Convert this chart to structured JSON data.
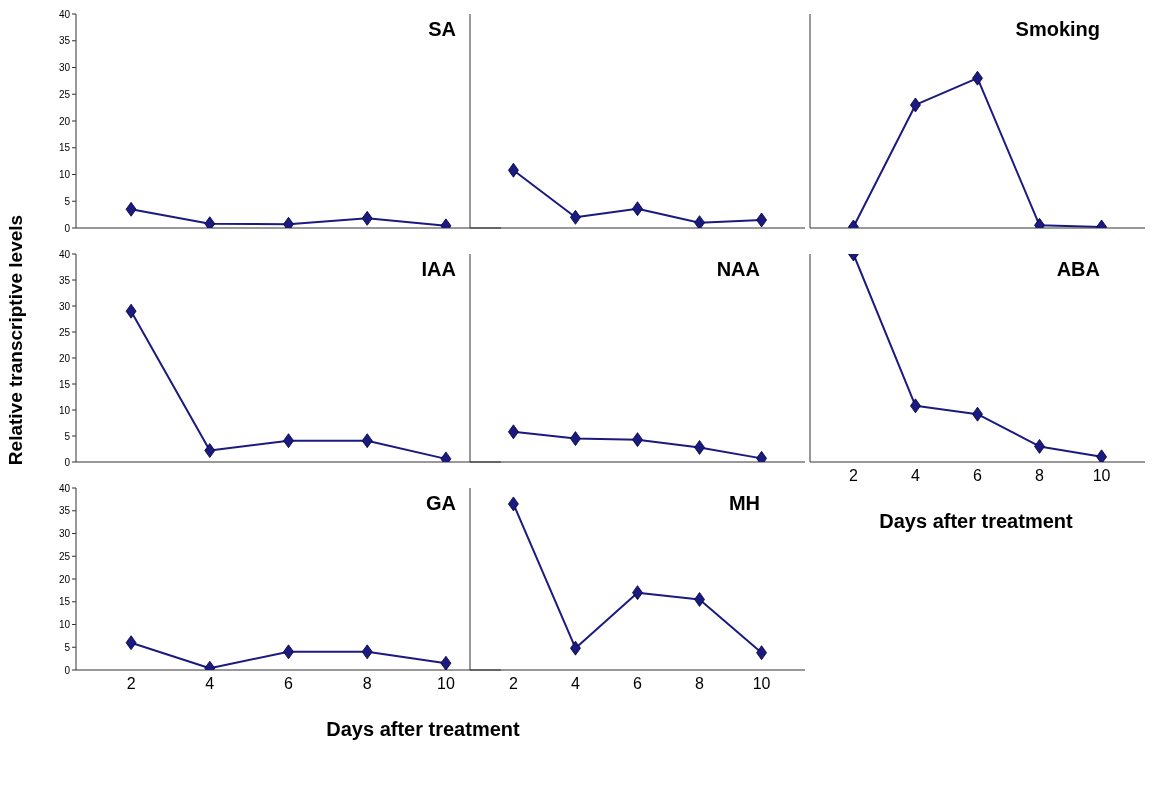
{
  "chart_data": [
    {
      "type": "line",
      "title": "SA",
      "x": [
        2,
        4,
        6,
        8,
        10
      ],
      "series": [
        {
          "color": "#1a1a80",
          "values": [
            3.5,
            0.8,
            0.7,
            1.8,
            0.4
          ]
        }
      ],
      "xlim": [
        0.6,
        11.4
      ],
      "xticks": [
        2,
        4,
        6,
        8,
        10
      ],
      "ylim": [
        0,
        40
      ],
      "yticks": [
        0,
        5,
        10,
        15,
        20,
        25,
        30,
        35,
        40
      ],
      "marker": "diamond",
      "tick_labels": "y"
    },
    {
      "type": "line",
      "x": [
        2,
        4,
        6,
        8,
        10
      ],
      "series": [
        {
          "color": "#1a1a80",
          "values": [
            10.8,
            2,
            3.6,
            1,
            1.5
          ]
        }
      ],
      "xlim": [
        0.6,
        11.4
      ],
      "xticks": [
        2,
        4,
        6,
        8,
        10
      ],
      "ylim": [
        0,
        40
      ],
      "yticks": [
        0,
        5,
        10,
        15,
        20,
        25,
        30,
        35,
        40
      ],
      "marker": "diamond",
      "tick_labels": false
    },
    {
      "type": "line",
      "title": "Smoking",
      "x": [
        2,
        4,
        6,
        8,
        10
      ],
      "series": [
        {
          "color": "#1a1a80",
          "values": [
            0.2,
            23,
            28,
            0.5,
            0.2
          ]
        }
      ],
      "xlim": [
        0.6,
        11.4
      ],
      "xticks": [
        2,
        4,
        6,
        8,
        10
      ],
      "ylim": [
        0,
        40
      ],
      "yticks": [
        0,
        5,
        10,
        15,
        20,
        25,
        30,
        35,
        40
      ],
      "marker": "diamond",
      "tick_labels": false
    },
    {
      "type": "line",
      "title": "IAA",
      "ylabel": "Relative transcriptive levels",
      "x": [
        2,
        4,
        6,
        8,
        10
      ],
      "series": [
        {
          "color": "#1a1a80",
          "values": [
            29,
            2.2,
            4.1,
            4.1,
            0.6
          ]
        }
      ],
      "xlim": [
        0.6,
        11.4
      ],
      "xticks": [
        2,
        4,
        6,
        8,
        10
      ],
      "ylim": [
        0,
        40
      ],
      "yticks": [
        0,
        5,
        10,
        15,
        20,
        25,
        30,
        35,
        40
      ],
      "marker": "diamond",
      "tick_labels": "y"
    },
    {
      "type": "line",
      "title": "NAA",
      "x": [
        2,
        4,
        6,
        8,
        10
      ],
      "series": [
        {
          "color": "#1a1a80",
          "values": [
            5.8,
            4.5,
            4.3,
            2.8,
            0.7
          ]
        }
      ],
      "xlim": [
        0.6,
        11.4
      ],
      "xticks": [
        2,
        4,
        6,
        8,
        10
      ],
      "ylim": [
        0,
        40
      ],
      "yticks": [
        0,
        5,
        10,
        15,
        20,
        25,
        30,
        35,
        40
      ],
      "marker": "diamond",
      "tick_labels": false
    },
    {
      "type": "line",
      "title": "ABA",
      "xlabel": "Days after treatment",
      "x": [
        2,
        4,
        6,
        8,
        10
      ],
      "series": [
        {
          "color": "#1a1a80",
          "values": [
            40,
            10.8,
            9.2,
            3,
            1
          ]
        }
      ],
      "xlim": [
        0.6,
        11.4
      ],
      "xticks": [
        2,
        4,
        6,
        8,
        10
      ],
      "ylim": [
        0,
        40
      ],
      "yticks": [
        0,
        5,
        10,
        15,
        20,
        25,
        30,
        35,
        40
      ],
      "marker": "diamond",
      "tick_labels": "x"
    },
    {
      "type": "line",
      "title": "GA",
      "xlabel": "Days after treatment",
      "x": [
        2,
        4,
        6,
        8,
        10
      ],
      "series": [
        {
          "color": "#1a1a80",
          "values": [
            6,
            0.4,
            4,
            4,
            1.5
          ]
        }
      ],
      "xlim": [
        0.6,
        11.4
      ],
      "xticks": [
        2,
        4,
        6,
        8,
        10
      ],
      "ylim": [
        0,
        40
      ],
      "yticks": [
        0,
        5,
        10,
        15,
        20,
        25,
        30,
        35,
        40
      ],
      "marker": "diamond"
    },
    {
      "type": "line",
      "title": "MH",
      "x": [
        2,
        4,
        6,
        8,
        10
      ],
      "series": [
        {
          "color": "#1a1a80",
          "values": [
            36.5,
            4.8,
            17,
            15.5,
            3.8
          ]
        }
      ],
      "xlim": [
        0.6,
        11.4
      ],
      "xticks": [
        2,
        4,
        6,
        8,
        10
      ],
      "ylim": [
        0,
        40
      ],
      "yticks": [
        0,
        5,
        10,
        15,
        20,
        25,
        30,
        35,
        40
      ],
      "marker": "diamond",
      "tick_labels": "x"
    }
  ]
}
